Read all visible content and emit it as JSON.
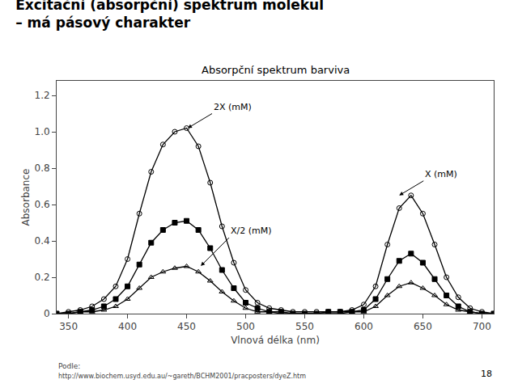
{
  "chart_data": {
    "type": "line",
    "title": "Excitační (absorpční) spektrum molekul",
    "subtitle": "– má pásový charakter",
    "chart_title": "Absorpční spektrum barviva",
    "xlabel": "Vlnová délka (nm)",
    "ylabel": "Absorbance",
    "xlim": [
      340,
      710
    ],
    "ylim": [
      0,
      1.28
    ],
    "xticks": [
      350,
      400,
      450,
      500,
      550,
      600,
      650,
      700
    ],
    "yticks": [
      0,
      0.2,
      0.4,
      0.6,
      0.8,
      {
        "value": 1.0,
        "label": "1.0"
      },
      1.2
    ],
    "grid": false,
    "x": [
      340,
      350,
      360,
      370,
      380,
      390,
      400,
      410,
      420,
      430,
      440,
      450,
      460,
      470,
      480,
      490,
      500,
      510,
      520,
      530,
      540,
      550,
      560,
      570,
      580,
      590,
      600,
      610,
      620,
      630,
      640,
      650,
      660,
      670,
      680,
      690,
      700,
      710
    ],
    "series": [
      {
        "color": "#000000",
        "marker": "circle-open",
        "line_style": "solid",
        "values": [
          0.0,
          0.01,
          0.02,
          0.04,
          0.08,
          0.15,
          0.3,
          0.55,
          0.78,
          0.93,
          1.0,
          1.02,
          0.92,
          0.72,
          0.48,
          0.28,
          0.13,
          0.06,
          0.03,
          0.02,
          0.01,
          0.01,
          0.01,
          0.01,
          0.01,
          0.02,
          0.05,
          0.15,
          0.38,
          0.58,
          0.65,
          0.55,
          0.38,
          0.2,
          0.09,
          0.03,
          0.01,
          0.0
        ]
      },
      {
        "color": "#000000",
        "marker": "square",
        "line_style": "solid",
        "values": [
          0.0,
          0.0,
          0.01,
          0.02,
          0.04,
          0.08,
          0.15,
          0.27,
          0.39,
          0.46,
          0.5,
          0.51,
          0.46,
          0.36,
          0.24,
          0.14,
          0.06,
          0.03,
          0.01,
          0.01,
          0.0,
          0.0,
          0.0,
          0.01,
          0.01,
          0.01,
          0.02,
          0.08,
          0.19,
          0.29,
          0.33,
          0.28,
          0.19,
          0.1,
          0.04,
          0.01,
          0.0,
          0.0
        ]
      },
      {
        "color": "#000000",
        "marker": "triangle-up-open",
        "line_style": "solid",
        "values": [
          0.0,
          0.0,
          0.01,
          0.01,
          0.02,
          0.04,
          0.08,
          0.14,
          0.2,
          0.23,
          0.25,
          0.26,
          0.23,
          0.18,
          0.12,
          0.07,
          0.03,
          0.01,
          0.01,
          0.0,
          0.0,
          0.0,
          0.0,
          0.0,
          0.0,
          0.01,
          0.01,
          0.04,
          0.1,
          0.15,
          0.17,
          0.14,
          0.1,
          0.05,
          0.02,
          0.01,
          0.0,
          0.0
        ]
      }
    ],
    "annotations": [
      {
        "text": "2X (mM)",
        "x": 451,
        "y": 1.02
      },
      {
        "text": "X (mM)",
        "x": 630,
        "y": 0.65
      },
      {
        "text": "X/2 (mM)",
        "x": 462,
        "y": 0.262
      }
    ],
    "footer": [
      "Podle:",
      "http://www.biochem.usyd.edu.au/~gareth/BCHM2001/pracposters/dyeZ.htm"
    ],
    "page_number": "18"
  }
}
